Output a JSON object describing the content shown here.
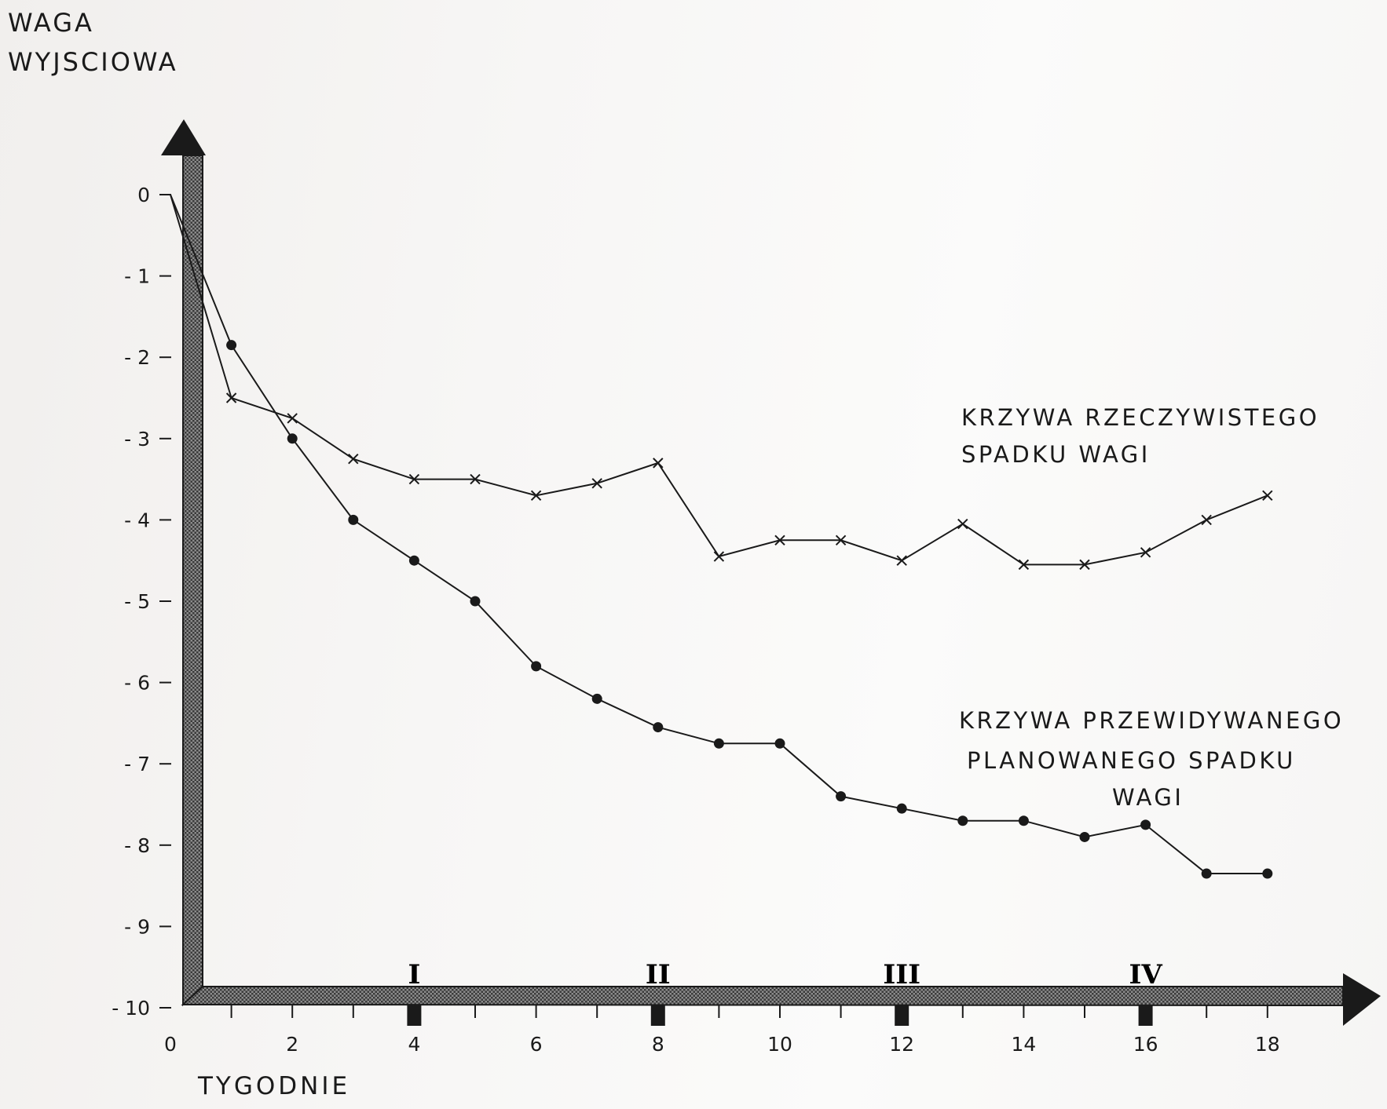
{
  "chart_data": {
    "type": "line",
    "ylabel_lines": [
      "WAGA",
      "WYJSCIOWA"
    ],
    "xlabel": "TYGODNIE",
    "xlim": [
      0,
      19.5
    ],
    "ylim": [
      -10,
      0
    ],
    "x_ticks": [
      0,
      2,
      4,
      6,
      8,
      10,
      12,
      14,
      16,
      18
    ],
    "x_tick_labels": [
      "0",
      "2",
      "4",
      "6",
      "8",
      "10",
      "12",
      "14",
      "16",
      "18"
    ],
    "y_ticks": [
      0,
      -1,
      -2,
      -3,
      -4,
      -5,
      -6,
      -7,
      -8,
      -9,
      -10
    ],
    "y_tick_labels": [
      "0",
      "- 1",
      "- 2",
      "- 3",
      "- 4",
      "- 5",
      "- 6",
      "- 7",
      "- 8",
      "- 9",
      "- 10"
    ],
    "period_markers": [
      {
        "x": 4,
        "label": "I"
      },
      {
        "x": 8,
        "label": "II"
      },
      {
        "x": 12,
        "label": "III"
      },
      {
        "x": 16,
        "label": "IV"
      }
    ],
    "grid": false,
    "series": [
      {
        "marker": "x",
        "x": [
          0,
          1,
          2,
          3,
          4,
          5,
          6,
          7,
          8,
          9,
          10,
          11,
          12,
          13,
          14,
          15,
          16,
          17,
          18
        ],
        "y": [
          0,
          -2.5,
          -2.75,
          -3.25,
          -3.5,
          -3.5,
          -3.7,
          -3.55,
          -3.3,
          -4.45,
          -4.25,
          -4.25,
          -4.5,
          -4.05,
          -4.55,
          -4.55,
          -4.4,
          -4.0,
          -3.7
        ]
      },
      {
        "marker": "dot",
        "x": [
          0,
          1,
          2,
          3,
          4,
          5,
          6,
          7,
          8,
          9,
          10,
          11,
          12,
          13,
          14,
          15,
          16,
          17,
          18
        ],
        "y": [
          0,
          -1.85,
          -3.0,
          -4.0,
          -4.5,
          -5.0,
          -5.8,
          -6.2,
          -6.55,
          -6.75,
          -6.75,
          -7.4,
          -7.55,
          -7.7,
          -7.7,
          -7.9,
          -7.75,
          -8.35,
          -8.35
        ]
      }
    ],
    "annotations": [
      {
        "lines": [
          "KRZYWA RZECZYWISTEGO",
          "SPADKU WAGI"
        ]
      },
      {
        "lines": [
          "KRZYWA PRZEWIDYWANEGO",
          "PLANOWANEGO SPADKU",
          "WAGI"
        ]
      }
    ]
  }
}
